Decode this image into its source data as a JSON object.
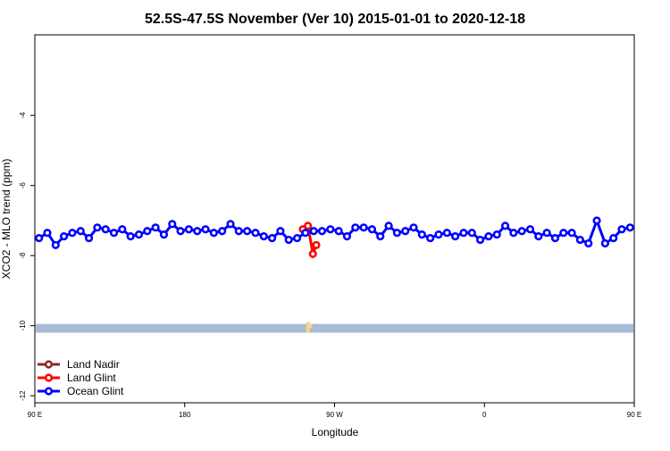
{
  "chart_data": {
    "type": "line",
    "title": "52.5S-47.5S November (Ver 10)   2015-01-01 to 2020-12-18",
    "xlabel": "Longitude",
    "ylabel": "XCO2 - MLO trend (ppm)",
    "xlim": [
      0,
      360
    ],
    "ylim": [
      -12.2,
      -1.7
    ],
    "x_ticks": [
      {
        "value": 0,
        "label": "90 E"
      },
      {
        "value": 90,
        "label": "180"
      },
      {
        "value": 180,
        "label": "90 W"
      },
      {
        "value": 270,
        "label": "0"
      },
      {
        "value": 360,
        "label": "90 E"
      },
      {
        "value": 450,
        "label": "180"
      }
    ],
    "y_ticks": [
      -12,
      -10,
      -8,
      -6,
      -4
    ],
    "grid": false,
    "legend_position": "bottom-left",
    "series": [
      {
        "name": "Land Nadir",
        "color": "#8b2a2a",
        "x": [],
        "y": []
      },
      {
        "name": "Land Glint",
        "color": "#ff0000",
        "x": [
          161,
          164,
          167,
          169
        ],
        "y": [
          -7.25,
          -7.15,
          -7.95,
          -7.7
        ]
      },
      {
        "name": "Ocean Glint",
        "color": "#0000ff",
        "x": [
          2.5,
          7.5,
          12.5,
          17.5,
          22.5,
          27.5,
          32.5,
          37.5,
          42.5,
          47.5,
          52.5,
          57.5,
          62.5,
          67.5,
          72.5,
          77.5,
          82.5,
          87.5,
          92.5,
          97.5,
          102.5,
          107.5,
          112.5,
          117.5,
          122.5,
          127.5,
          132.5,
          137.5,
          142.5,
          147.5,
          152.5,
          157.5,
          162.5,
          167.5,
          172.5,
          177.5,
          182.5,
          187.5,
          192.5,
          197.5,
          202.5,
          207.5,
          212.5,
          217.5,
          222.5,
          227.5,
          232.5,
          237.5,
          242.5,
          247.5,
          252.5,
          257.5,
          262.5,
          267.5,
          272.5,
          277.5,
          282.5,
          287.5,
          292.5,
          297.5,
          302.5,
          307.5,
          312.5,
          317.5,
          322.5,
          327.5,
          332.5,
          337.5,
          342.5,
          347.5,
          352.5,
          357.5
        ],
        "y": [
          -7.5,
          -7.35,
          -7.7,
          -7.45,
          -7.35,
          -7.3,
          -7.5,
          -7.2,
          -7.25,
          -7.35,
          -7.25,
          -7.45,
          -7.4,
          -7.3,
          -7.2,
          -7.4,
          -7.1,
          -7.3,
          -7.25,
          -7.3,
          -7.25,
          -7.35,
          -7.3,
          -7.1,
          -7.3,
          -7.3,
          -7.35,
          -7.45,
          -7.5,
          -7.3,
          -7.55,
          -7.5,
          -7.35,
          -7.3,
          -7.3,
          -7.25,
          -7.3,
          -7.45,
          -7.2,
          -7.2,
          -7.25,
          -7.45,
          -7.15,
          -7.35,
          -7.3,
          -7.2,
          -7.4,
          -7.5,
          -7.4,
          -7.35,
          -7.45,
          -7.35,
          -7.35,
          -7.55,
          -7.45,
          -7.4,
          -7.15,
          -7.35,
          -7.3,
          -7.25,
          -7.45,
          -7.35,
          -7.5,
          -7.35,
          -7.35,
          -7.55,
          -7.65,
          -7.0,
          -7.65,
          -7.5,
          -7.25,
          -7.2
        ]
      }
    ],
    "coastline_band": {
      "y_range": [
        -10.2,
        -9.95
      ],
      "color": "#a8bcd9",
      "land_color": "#f5d483"
    }
  }
}
